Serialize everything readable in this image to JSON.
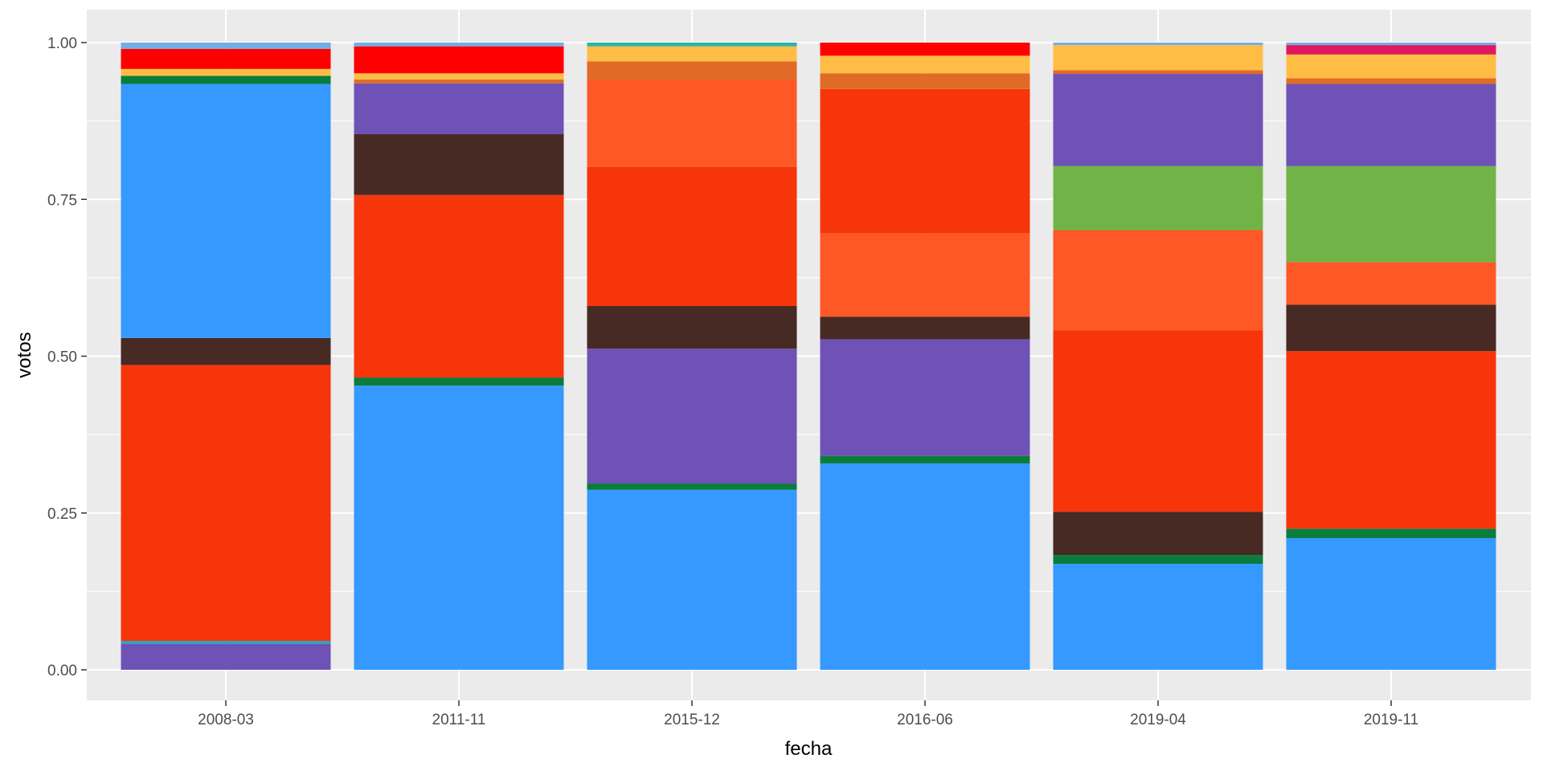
{
  "chart_data": {
    "type": "bar",
    "stacked": true,
    "orientation": "vertical",
    "xlabel": "fecha",
    "ylabel": "votos",
    "ylim": [
      0,
      1
    ],
    "y_ticks": [
      "0.00",
      "0.25",
      "0.50",
      "0.75",
      "1.00"
    ],
    "y_tick_values": [
      0,
      0.25,
      0.5,
      0.75,
      1
    ],
    "grid": true,
    "legend": "none",
    "panel_color": "#ebebeb",
    "grid_color": "#ffffff",
    "categories": [
      "2008-03",
      "2011-11",
      "2015-12",
      "2016-06",
      "2019-04",
      "2019-11"
    ],
    "bars": [
      {
        "category": "2008-03",
        "segments": [
          {
            "color": "#6f52b5",
            "value": 0.041
          },
          {
            "color": "#2f9fc7",
            "value": 0.005
          },
          {
            "color": "#f7350b",
            "value": 0.44
          },
          {
            "color": "#472a24",
            "value": 0.043
          },
          {
            "color": "#3699ff",
            "value": 0.405
          },
          {
            "color": "#0a7d3c",
            "value": 0.013
          },
          {
            "color": "#ffbd45",
            "value": 0.011
          },
          {
            "color": "#ff0000",
            "value": 0.032
          },
          {
            "color": "#72aee6",
            "value": 0.01
          }
        ]
      },
      {
        "category": "2011-11",
        "segments": [
          {
            "color": "#3699ff",
            "value": 0.453
          },
          {
            "color": "#0a7d3c",
            "value": 0.013
          },
          {
            "color": "#f7350b",
            "value": 0.291
          },
          {
            "color": "#472a24",
            "value": 0.097
          },
          {
            "color": "#6f52b5",
            "value": 0.081
          },
          {
            "color": "#e06b27",
            "value": 0.006
          },
          {
            "color": "#ffbd45",
            "value": 0.01
          },
          {
            "color": "#ff0000",
            "value": 0.043
          },
          {
            "color": "#72aee6",
            "value": 0.006
          }
        ]
      },
      {
        "category": "2015-12",
        "segments": [
          {
            "color": "#3699ff",
            "value": 0.287
          },
          {
            "color": "#0a7d3c",
            "value": 0.01
          },
          {
            "color": "#6f52b5",
            "value": 0.215
          },
          {
            "color": "#472a24",
            "value": 0.068
          },
          {
            "color": "#f7350b",
            "value": 0.222
          },
          {
            "color": "#ff5827",
            "value": 0.139
          },
          {
            "color": "#e06b27",
            "value": 0.029
          },
          {
            "color": "#ffbd45",
            "value": 0.024
          },
          {
            "color": "#2ab4a8",
            "value": 0.006
          }
        ]
      },
      {
        "category": "2016-06",
        "segments": [
          {
            "color": "#3699ff",
            "value": 0.329
          },
          {
            "color": "#0a7d3c",
            "value": 0.012
          },
          {
            "color": "#6f52b5",
            "value": 0.186
          },
          {
            "color": "#472a24",
            "value": 0.036
          },
          {
            "color": "#ff5827",
            "value": 0.133
          },
          {
            "color": "#f7350b",
            "value": 0.23
          },
          {
            "color": "#e06b27",
            "value": 0.025
          },
          {
            "color": "#ffbd45",
            "value": 0.028
          },
          {
            "color": "#ff0000",
            "value": 0.021
          }
        ]
      },
      {
        "category": "2019-04",
        "segments": [
          {
            "color": "#3699ff",
            "value": 0.169
          },
          {
            "color": "#0a7d3c",
            "value": 0.014
          },
          {
            "color": "#472a24",
            "value": 0.069
          },
          {
            "color": "#f7350b",
            "value": 0.289
          },
          {
            "color": "#ff5827",
            "value": 0.16
          },
          {
            "color": "#72b347",
            "value": 0.102
          },
          {
            "color": "#6f52b5",
            "value": 0.147
          },
          {
            "color": "#e06b27",
            "value": 0.006
          },
          {
            "color": "#ffbd45",
            "value": 0.04
          },
          {
            "color": "#72aee6",
            "value": 0.004
          }
        ]
      },
      {
        "category": "2019-11",
        "segments": [
          {
            "color": "#3699ff",
            "value": 0.21
          },
          {
            "color": "#0a7d3c",
            "value": 0.015
          },
          {
            "color": "#f7350b",
            "value": 0.283
          },
          {
            "color": "#472a24",
            "value": 0.074
          },
          {
            "color": "#ff5827",
            "value": 0.068
          },
          {
            "color": "#72b347",
            "value": 0.153
          },
          {
            "color": "#6f52b5",
            "value": 0.131
          },
          {
            "color": "#e06b27",
            "value": 0.009
          },
          {
            "color": "#ffbd45",
            "value": 0.038
          },
          {
            "color": "#e0185e",
            "value": 0.015
          },
          {
            "color": "#72aee6",
            "value": 0.004
          }
        ]
      }
    ]
  }
}
